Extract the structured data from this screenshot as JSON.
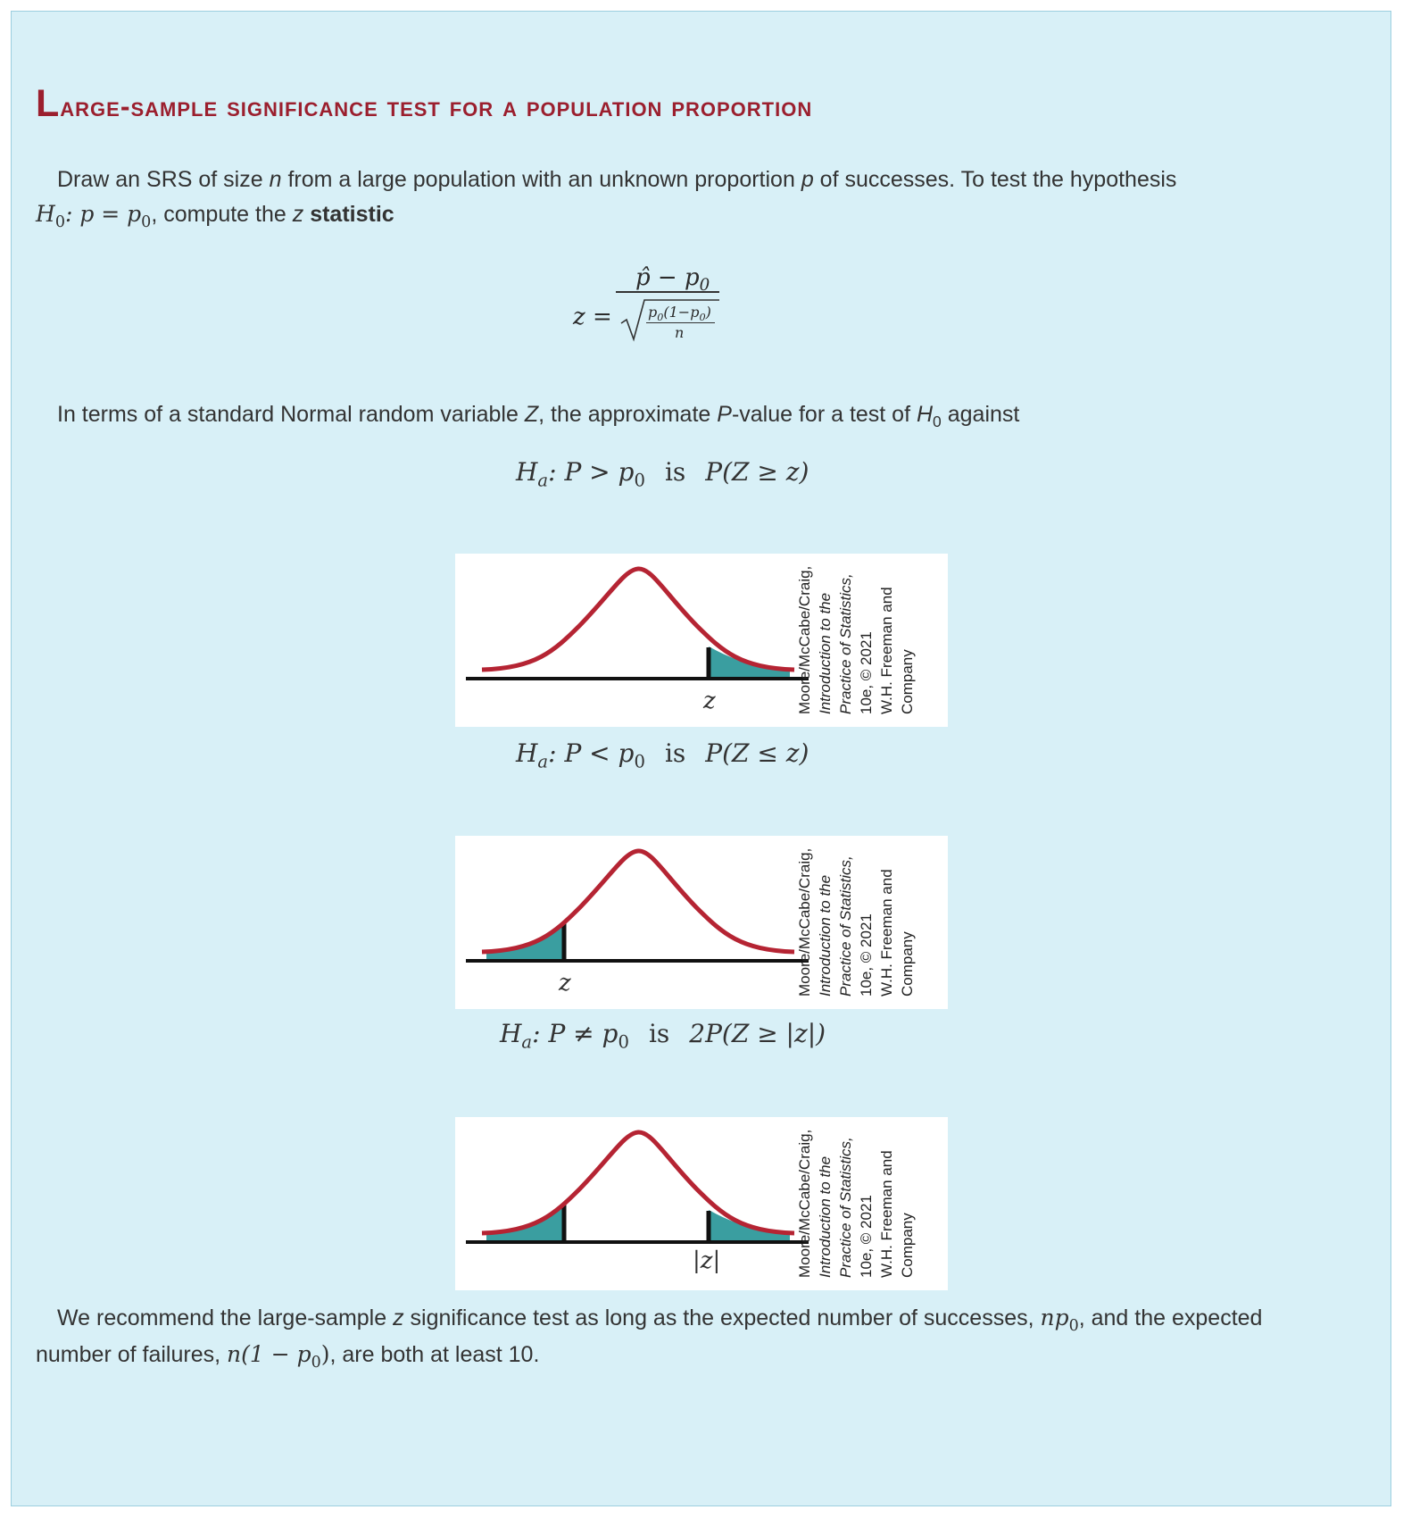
{
  "title": {
    "first_letter": "L",
    "rest": "arge-sample significance test for a population proportion"
  },
  "intro": {
    "t1": "Draw an SRS of size ",
    "n": "n",
    "t2": " from a large population with an unknown proportion ",
    "p": "p",
    "t3": " of successes. To test the hypothesis",
    "h0": "H",
    "h0_sub": "0",
    "h0_eq": ": p = p",
    "h0_eq_sub": "0",
    "t4": ", compute the ",
    "z": "z",
    "statistic": "statistic"
  },
  "formula": {
    "lhs": "z =",
    "numerator": "p̂ − p",
    "numerator_sub": "0",
    "inner_num": "p",
    "inner_num_sub": "0",
    "inner_num_rest": "(1−p",
    "inner_num_sub2": "0",
    "inner_num_close": ")",
    "inner_den": "n"
  },
  "pvalue_intro": {
    "t1": "In terms of a standard Normal random variable ",
    "Z": "Z",
    "t2": ", the approximate ",
    "P": "P",
    "t3": "-value for a test of ",
    "H": "H",
    "H_sub": "0",
    "t4": " against"
  },
  "hypotheses": [
    {
      "ha": "H",
      "ha_sub": "a",
      "rel": ": P > p",
      "rel_sub": "0",
      "is": "is",
      "pval": "P(Z ≥ z)"
    },
    {
      "ha": "H",
      "ha_sub": "a",
      "rel": ": P < p",
      "rel_sub": "0",
      "is": "is",
      "pval": "P(Z ≤ z)"
    },
    {
      "ha": "H",
      "ha_sub": "a",
      "rel": ": P ≠ p",
      "rel_sub": "0",
      "is": "is",
      "pval": "2P(Z ≥ |z|)"
    }
  ],
  "figures": [
    {
      "label": "z",
      "shade": "upper"
    },
    {
      "label": "z",
      "shade": "lower"
    },
    {
      "label": "|z|",
      "shade": "both"
    }
  ],
  "credit": {
    "l1": "Moore/McCabe/Craig,",
    "l2": "Introduction to the",
    "l3": "Practice of Statistics,",
    "l4": "10e, © 2021",
    "l5": "W.H. Freeman and",
    "l6": "Company"
  },
  "closing": {
    "t1": "We recommend the large-sample ",
    "z": "z",
    "t2": " significance test as long as the expected number of successes, ",
    "np": "np",
    "np_sub": "0",
    "t3": ", and the expected",
    "t4": "number of failures, ",
    "nf": "n(1 − p",
    "nf_sub": "0",
    "nf_close": ")",
    "t5": ", are both at least 10."
  },
  "colors": {
    "title": "#9b1f2e",
    "box_bg": "#d8f0f7",
    "curve": "#b52433",
    "shade": "#3a9ea0"
  }
}
